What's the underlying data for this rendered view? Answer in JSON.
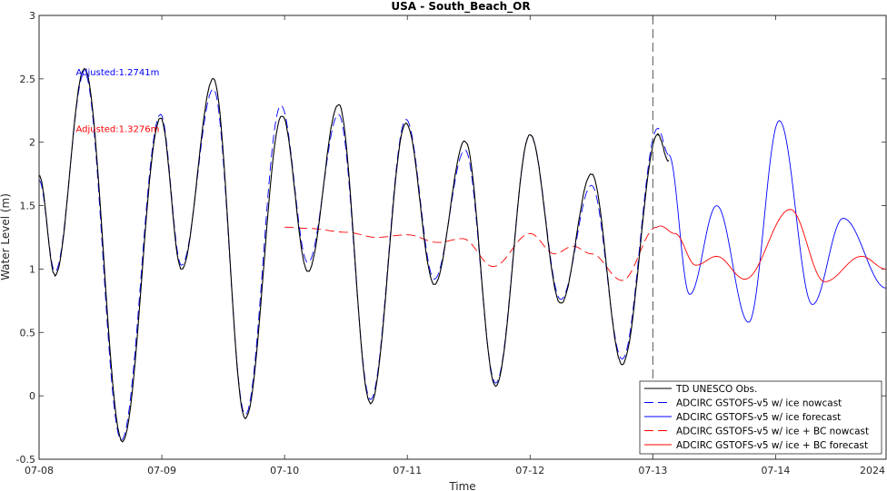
{
  "chart_data": {
    "type": "line",
    "title": "USA - South_Beach_OR",
    "xlabel": "Time",
    "ylabel": "Water Level (m)",
    "xlim": [
      0,
      6.9
    ],
    "ylim": [
      -0.5,
      3
    ],
    "x_ticks": [
      0,
      1,
      2,
      3,
      4,
      5,
      6
    ],
    "x_tick_labels": [
      "07-08",
      "07-09",
      "07-10",
      "07-11",
      "07-12",
      "07-13",
      "07-14"
    ],
    "x_year_label": "2024",
    "y_ticks": [
      -0.5,
      0,
      0.5,
      1,
      1.5,
      2,
      2.5,
      3
    ],
    "y_tick_labels": [
      "-0.5",
      "0",
      "0.5",
      "1",
      "1.5",
      "2",
      "2.5",
      "3"
    ],
    "nowcast_divider_x": 5.0,
    "legend_position": "bottom-right",
    "extrema": {
      "obs": [
        [
          0.0,
          1.74
        ],
        [
          0.13,
          0.95
        ],
        [
          0.37,
          2.58
        ],
        [
          0.68,
          -0.36
        ],
        [
          0.99,
          2.19
        ],
        [
          1.16,
          1.0
        ],
        [
          1.42,
          2.5
        ],
        [
          1.68,
          -0.18
        ],
        [
          1.98,
          2.21
        ],
        [
          2.19,
          0.98
        ],
        [
          2.44,
          2.3
        ],
        [
          2.7,
          -0.06
        ],
        [
          2.99,
          2.15
        ],
        [
          3.22,
          0.88
        ],
        [
          3.47,
          2.01
        ],
        [
          3.72,
          0.08
        ],
        [
          4.0,
          2.06
        ],
        [
          4.25,
          0.73
        ],
        [
          4.5,
          1.75
        ],
        [
          4.75,
          0.25
        ],
        [
          5.04,
          2.06
        ],
        [
          5.13,
          1.85
        ]
      ],
      "nowcast": [
        [
          0.0,
          1.7
        ],
        [
          0.13,
          0.98
        ],
        [
          0.37,
          2.55
        ],
        [
          0.67,
          -0.35
        ],
        [
          0.99,
          2.22
        ],
        [
          1.16,
          1.03
        ],
        [
          1.42,
          2.42
        ],
        [
          1.68,
          -0.15
        ],
        [
          1.97,
          2.29
        ],
        [
          2.19,
          1.05
        ],
        [
          2.44,
          2.22
        ],
        [
          2.7,
          -0.03
        ],
        [
          2.99,
          2.18
        ],
        [
          3.22,
          0.92
        ],
        [
          3.47,
          1.94
        ],
        [
          3.72,
          0.1
        ],
        [
          4.0,
          2.06
        ],
        [
          4.25,
          0.76
        ],
        [
          4.5,
          1.66
        ],
        [
          4.75,
          0.29
        ],
        [
          5.04,
          2.11
        ],
        [
          5.13,
          1.9
        ]
      ],
      "forecast": [
        [
          5.13,
          1.9
        ],
        [
          5.3,
          0.8
        ],
        [
          5.52,
          1.5
        ],
        [
          5.78,
          0.58
        ],
        [
          6.03,
          2.17
        ],
        [
          6.3,
          0.72
        ],
        [
          6.55,
          1.4
        ],
        [
          6.9,
          0.85
        ]
      ],
      "bc_nowcast": [
        [
          2.0,
          1.33
        ],
        [
          2.2,
          1.32
        ],
        [
          2.5,
          1.29
        ],
        [
          2.75,
          1.25
        ],
        [
          3.0,
          1.27
        ],
        [
          3.25,
          1.21
        ],
        [
          3.45,
          1.24
        ],
        [
          3.7,
          1.02
        ],
        [
          4.0,
          1.28
        ],
        [
          4.2,
          1.12
        ],
        [
          4.35,
          1.18
        ],
        [
          4.5,
          1.12
        ],
        [
          4.75,
          0.91
        ],
        [
          5.03,
          1.33
        ],
        [
          5.06,
          1.34
        ]
      ],
      "bc_forecast": [
        [
          5.06,
          1.34
        ],
        [
          5.18,
          1.28
        ],
        [
          5.35,
          1.03
        ],
        [
          5.52,
          1.1
        ],
        [
          5.75,
          0.92
        ],
        [
          6.12,
          1.47
        ],
        [
          6.4,
          0.9
        ],
        [
          6.7,
          1.1
        ],
        [
          6.9,
          1.0
        ]
      ]
    },
    "series": [
      {
        "name": "TD UNESCO Obs.",
        "color": "#000000",
        "style": "solid",
        "key": "obs"
      },
      {
        "name": "ADCIRC GSTOFS-v5 w/ ice nowcast",
        "color": "#0000ff",
        "style": "dashed",
        "key": "nowcast"
      },
      {
        "name": "ADCIRC GSTOFS-v5 w/ ice forecast",
        "color": "#0000ff",
        "style": "solid",
        "key": "forecast"
      },
      {
        "name": "ADCIRC GSTOFS-v5 w/ ice + BC nowcast",
        "color": "#ff0000",
        "style": "dashed",
        "key": "bc_nowcast"
      },
      {
        "name": "ADCIRC GSTOFS-v5 w/ ice + BC forecast",
        "color": "#ff0000",
        "style": "solid",
        "key": "bc_forecast"
      }
    ],
    "annotations": [
      {
        "text": "Adjusted:1.2741m",
        "color": "#0000ff",
        "x": 0.3,
        "y": 2.55
      },
      {
        "text": "Adjusted:1.3276m",
        "color": "#ff0000",
        "x": 0.3,
        "y": 2.1
      }
    ]
  }
}
